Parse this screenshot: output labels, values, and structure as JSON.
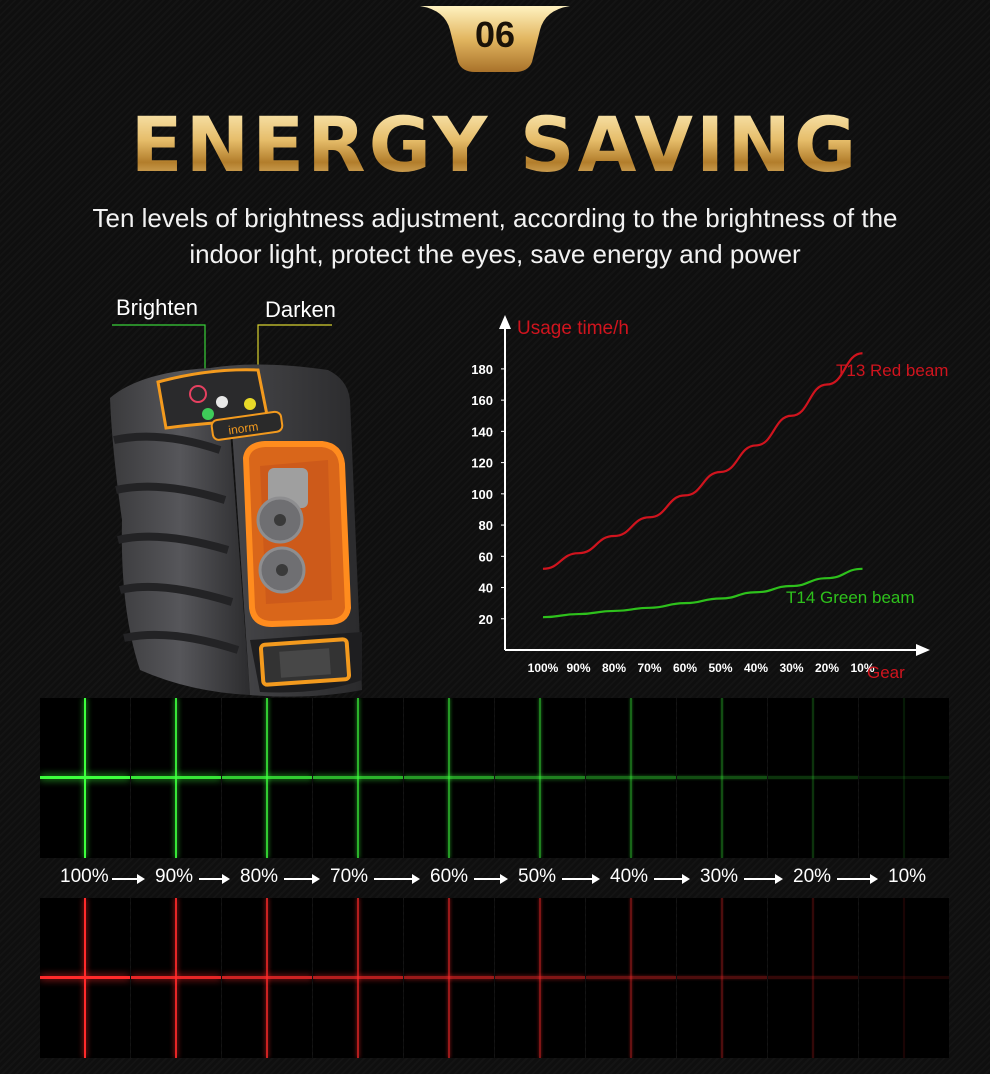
{
  "badge": {
    "number": "06"
  },
  "title": "ENERGY SAVING",
  "subtitle": {
    "line1": "Ten levels of brightness adjustment, according to the brightness of the",
    "line2": "indoor light, protect the eyes, save energy and power"
  },
  "callouts": {
    "brighten": "Brighten",
    "darken": "Darken"
  },
  "device": {
    "brand": "inorm"
  },
  "chart_data": {
    "type": "line",
    "ylabel": "Usage time/h",
    "xlabel": "Gear",
    "categories": [
      "100%",
      "90%",
      "80%",
      "70%",
      "60%",
      "50%",
      "40%",
      "30%",
      "20%",
      "10%"
    ],
    "ylim": [
      0,
      190
    ],
    "yticks": [
      20,
      40,
      60,
      80,
      100,
      120,
      140,
      160,
      180
    ],
    "grid": false,
    "series": [
      {
        "name": "T13 Red beam",
        "color": "#d0141e",
        "values": [
          52,
          62,
          73,
          85,
          99,
          114,
          131,
          150,
          170,
          190
        ]
      },
      {
        "name": "T14 Green beam",
        "color": "#2ec11c",
        "values": [
          21,
          23,
          25,
          27,
          30,
          33,
          37,
          41,
          46,
          52
        ]
      }
    ]
  },
  "brightness_levels": [
    "100%",
    "90%",
    "80%",
    "70%",
    "60%",
    "50%",
    "40%",
    "30%",
    "20%",
    "10%"
  ],
  "brightness_fraction": [
    1.0,
    0.9,
    0.8,
    0.7,
    0.6,
    0.5,
    0.4,
    0.3,
    0.2,
    0.1
  ],
  "colors": {
    "gold": "#e6bd6a",
    "green_beam": "#3dff3d",
    "red_beam": "#ff2a2a"
  }
}
